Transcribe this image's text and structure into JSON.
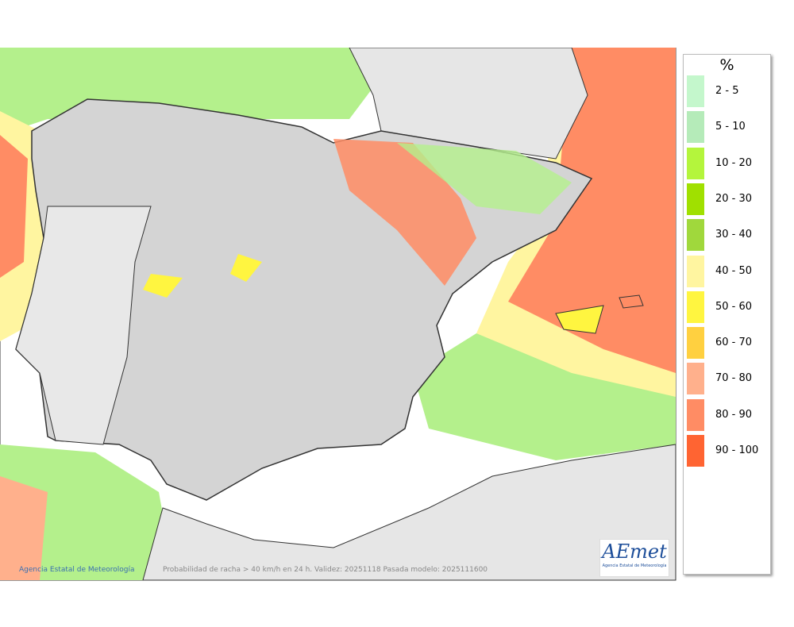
{
  "map": {
    "footer": {
      "credit": "Agencia Estatal de Meteorología",
      "caption": "Probabilidad de racha > 40 km/h en 24 h. Validez: 20251118 Pasada modelo: 2025111600"
    },
    "logo": {
      "name": "AEmet",
      "subtitle": "Agencia Estatal de Meteorología"
    }
  },
  "legend": {
    "title": "%",
    "items": [
      {
        "label": "2 - 5",
        "color": "#c4f7cc"
      },
      {
        "label": "5 - 10",
        "color": "#b5ebb9"
      },
      {
        "label": "10 - 20",
        "color": "#b4f53c"
      },
      {
        "label": "20 - 30",
        "color": "#a0e000"
      },
      {
        "label": "30 - 40",
        "color": "#a0d83c"
      },
      {
        "label": "40 - 50",
        "color": "#fff5a0"
      },
      {
        "label": "50 - 60",
        "color": "#fff540"
      },
      {
        "label": "60 - 70",
        "color": "#ffd040"
      },
      {
        "label": "70 - 80",
        "color": "#ffb08c"
      },
      {
        "label": "80 - 90",
        "color": "#ff8c64"
      },
      {
        "label": "90 - 100",
        "color": "#ff6432"
      }
    ]
  }
}
